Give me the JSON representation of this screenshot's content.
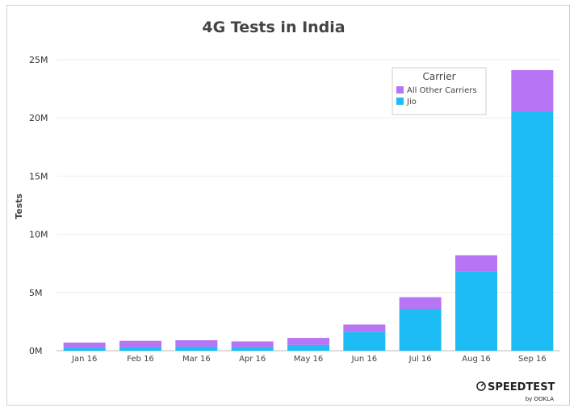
{
  "chart_data": {
    "type": "bar",
    "stacked": true,
    "title": "4G Tests in India",
    "xlabel": "",
    "ylabel": "Tests",
    "ylim": [
      0,
      25000000
    ],
    "yticks": [
      0,
      5000000,
      10000000,
      15000000,
      20000000,
      25000000
    ],
    "ytick_labels": [
      "0M",
      "5M",
      "10M",
      "15M",
      "20M",
      "25M"
    ],
    "grid": true,
    "categories": [
      "Jan 16",
      "Feb 16",
      "Mar 16",
      "Apr 16",
      "May 16",
      "Jun 16",
      "Jul 16",
      "Aug 16",
      "Sep 16"
    ],
    "series": [
      {
        "name": "Jio",
        "color": "#1ebcf5",
        "values": [
          250000,
          300000,
          350000,
          300000,
          500000,
          1600000,
          3600000,
          6800000,
          20500000
        ]
      },
      {
        "name": "All Other Carriers",
        "color": "#b774f5",
        "values": [
          450000,
          550000,
          550000,
          500000,
          600000,
          650000,
          1000000,
          1400000,
          3600000
        ]
      }
    ],
    "legend": {
      "title": "Carrier",
      "placement": "top-right",
      "order": [
        "All Other Carriers",
        "Jio"
      ]
    }
  },
  "branding": {
    "name": "SPEEDTEST",
    "sub": "by OOKLA"
  }
}
